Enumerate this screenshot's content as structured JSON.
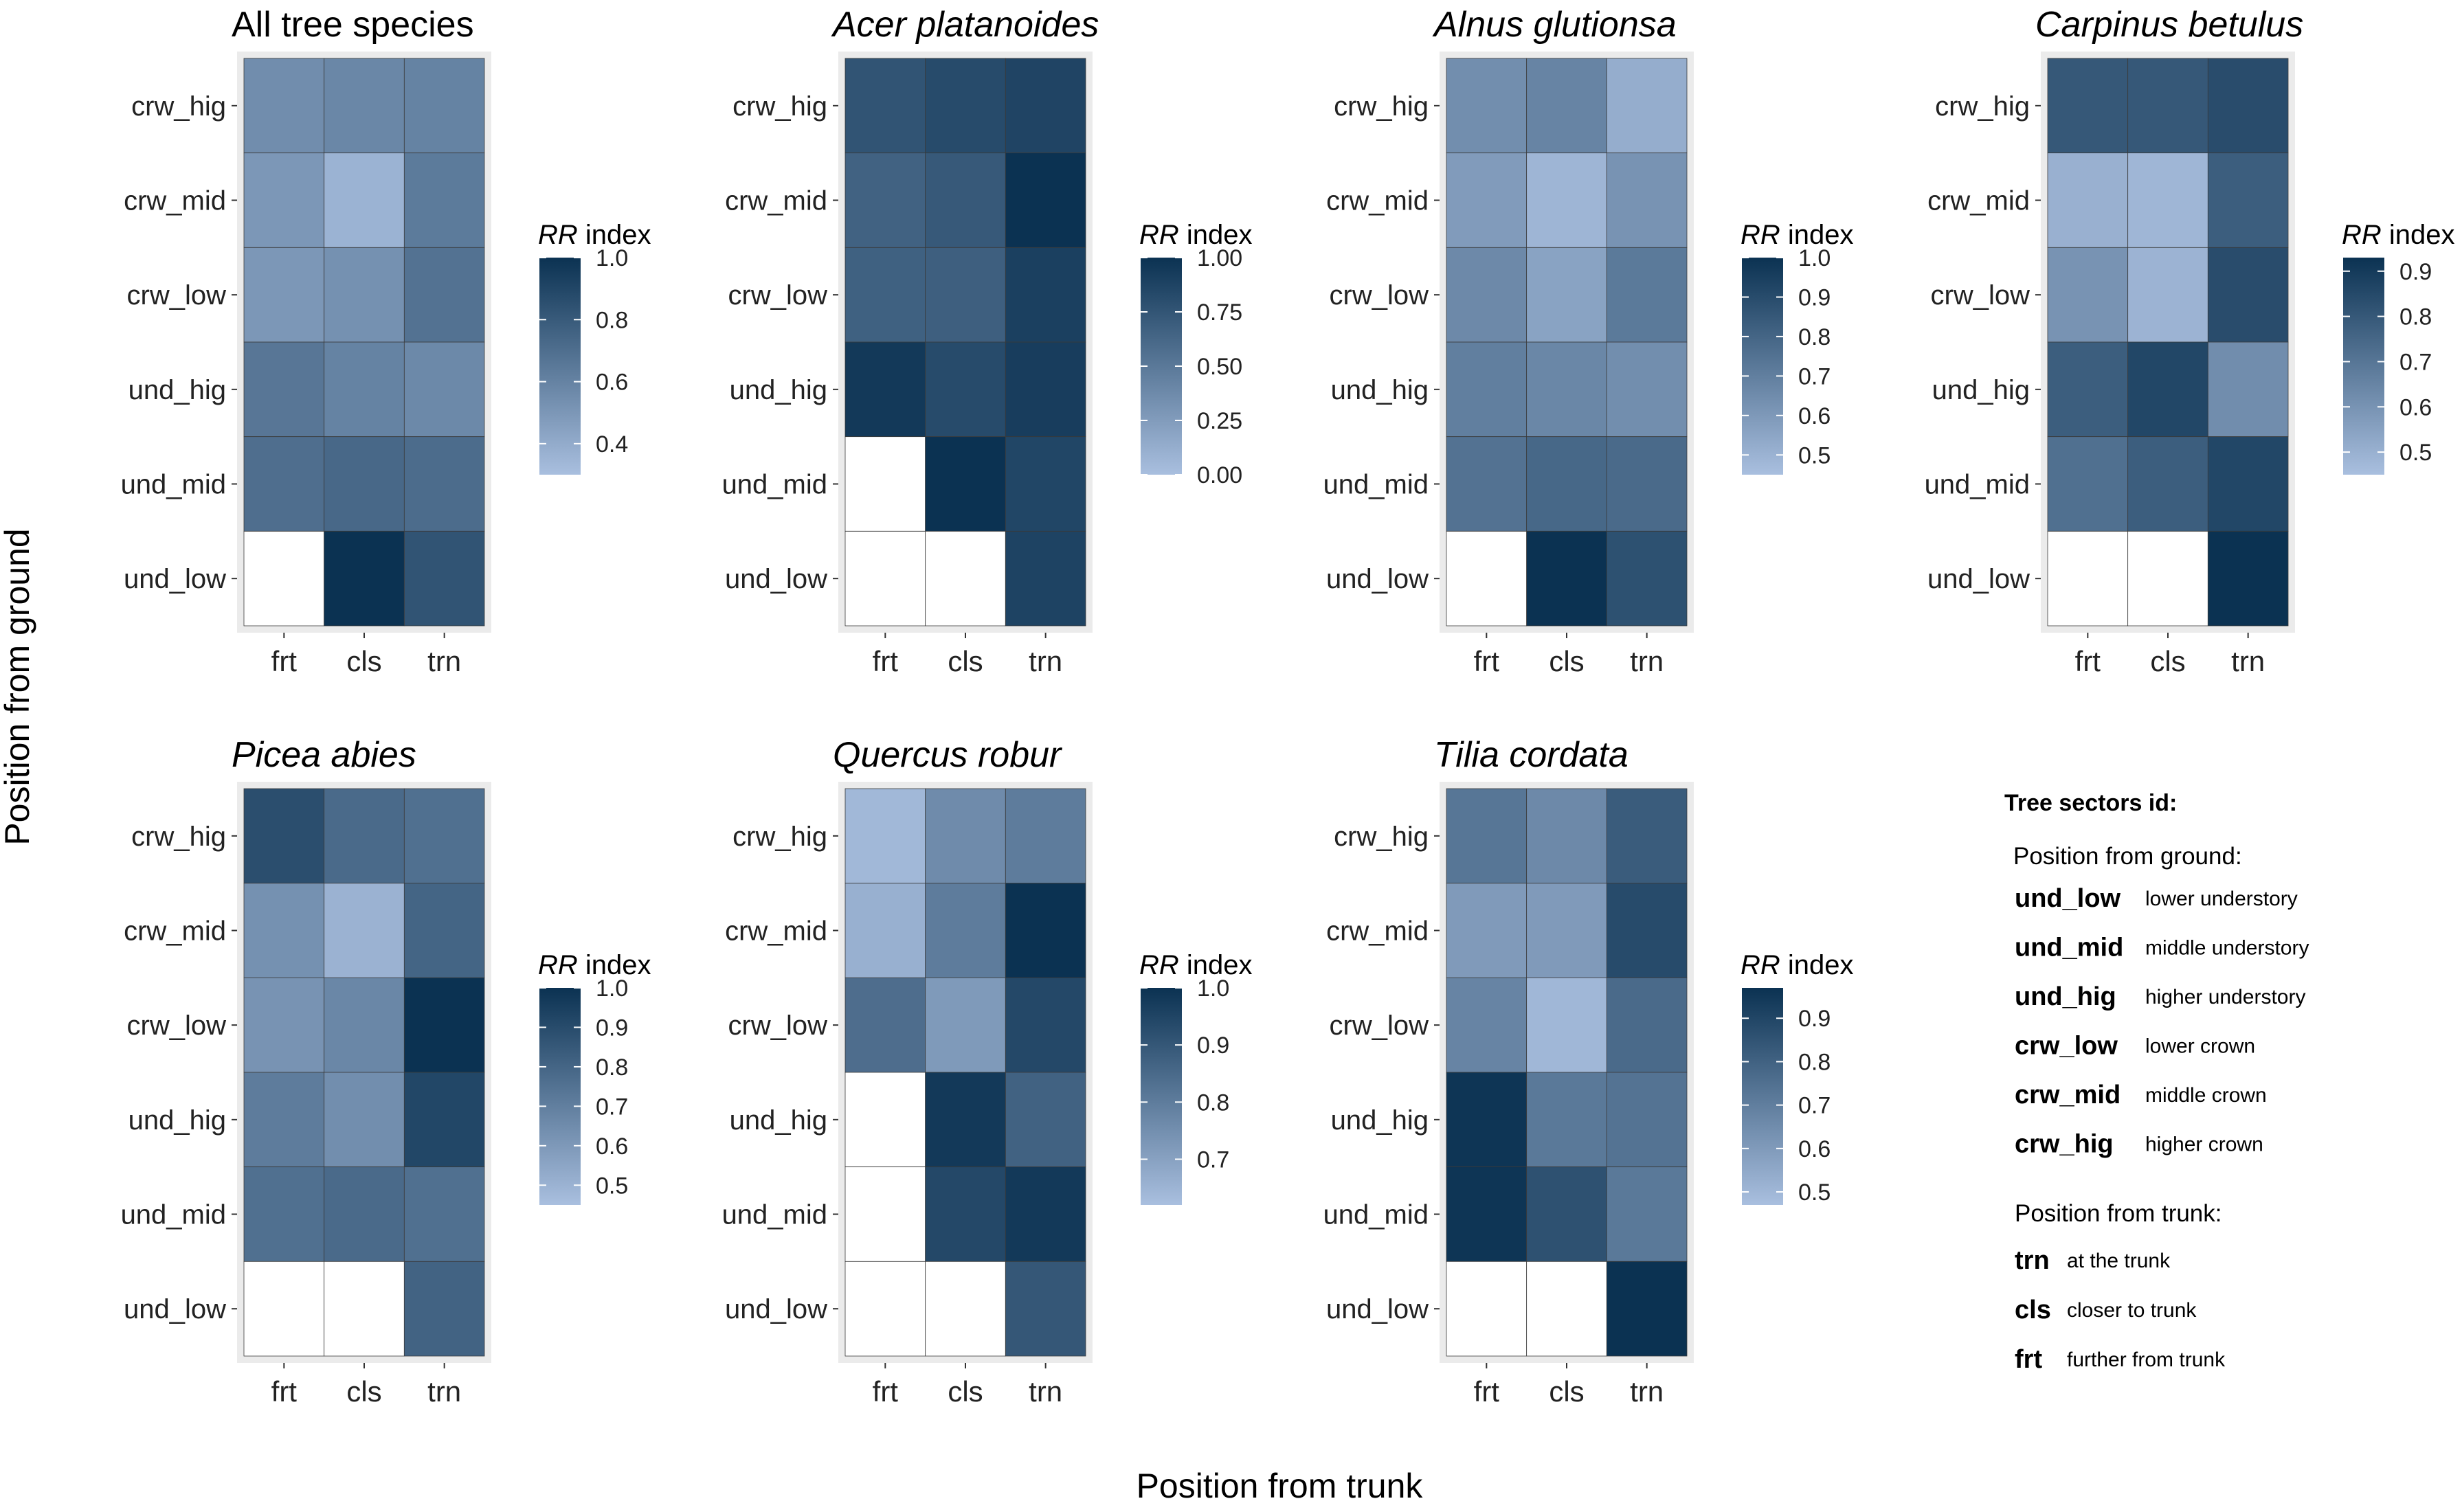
{
  "axes": {
    "ylabel": "Position from ground",
    "xlabel": "Position from trunk"
  },
  "colors": {
    "low": "#a9bfdf",
    "high": "#0b3252",
    "panel_bg": "#ebebeb",
    "missing": "#ffffff"
  },
  "chart_data": [
    {
      "type": "heatmap",
      "title": "All tree species",
      "italic_title": false,
      "x": [
        "frt",
        "cls",
        "trn"
      ],
      "y": [
        "crw_hig",
        "crw_mid",
        "crw_low",
        "und_hig",
        "und_mid",
        "und_low"
      ],
      "legend_title_italic": "RR",
      "legend_title_rest": " index",
      "limits": [
        0.3,
        1.0
      ],
      "breaks": [
        0.4,
        0.6,
        0.8,
        1.0
      ],
      "break_labels": [
        "0.4",
        "0.6",
        "0.8",
        "1.0"
      ],
      "values": [
        [
          0.55,
          0.58,
          0.6
        ],
        [
          0.5,
          0.36,
          0.64
        ],
        [
          0.5,
          0.53,
          0.68
        ],
        [
          0.66,
          0.6,
          0.57
        ],
        [
          0.7,
          0.73,
          0.71
        ],
        [
          null,
          1.0,
          0.83
        ]
      ]
    },
    {
      "type": "heatmap",
      "title": "Acer platanoides",
      "italic_title": true,
      "x": [
        "frt",
        "cls",
        "trn"
      ],
      "y": [
        "crw_hig",
        "crw_mid",
        "crw_low",
        "und_hig",
        "und_mid",
        "und_low"
      ],
      "legend_title_italic": "RR",
      "legend_title_rest": " index",
      "limits": [
        0.0,
        1.0
      ],
      "breaks": [
        0.0,
        0.25,
        0.5,
        0.75,
        1.0
      ],
      "break_labels": [
        "0.00",
        "0.25",
        "0.50",
        "0.75",
        "1.00"
      ],
      "values": [
        [
          0.76,
          0.82,
          0.87
        ],
        [
          0.66,
          0.72,
          1.0
        ],
        [
          0.67,
          0.68,
          0.9
        ],
        [
          0.95,
          0.82,
          0.92
        ],
        [
          null,
          1.0,
          0.86
        ],
        [
          null,
          null,
          0.88
        ]
      ]
    },
    {
      "type": "heatmap",
      "title": "Alnus glutionsa",
      "italic_title": true,
      "x": [
        "frt",
        "cls",
        "trn"
      ],
      "y": [
        "crw_hig",
        "crw_mid",
        "crw_low",
        "und_hig",
        "und_mid",
        "und_low"
      ],
      "legend_title_italic": "RR",
      "legend_title_rest": " index",
      "limits": [
        0.45,
        1.0
      ],
      "breaks": [
        0.5,
        0.6,
        0.7,
        0.8,
        0.9,
        1.0
      ],
      "break_labels": [
        "0.5",
        "0.6",
        "0.7",
        "0.8",
        "0.9",
        "1.0"
      ],
      "values": [
        [
          0.64,
          0.68,
          0.52
        ],
        [
          0.59,
          0.49,
          0.62
        ],
        [
          0.66,
          0.56,
          0.72
        ],
        [
          0.7,
          0.67,
          0.64
        ],
        [
          0.75,
          0.79,
          0.78
        ],
        [
          null,
          1.0,
          0.88
        ]
      ]
    },
    {
      "type": "heatmap",
      "title": "Carpinus betulus",
      "italic_title": true,
      "x": [
        "frt",
        "cls",
        "trn"
      ],
      "y": [
        "crw_hig",
        "crw_mid",
        "crw_low",
        "und_hig",
        "und_mid",
        "und_low"
      ],
      "legend_title_italic": "RR",
      "legend_title_rest": " index",
      "limits": [
        0.45,
        0.93
      ],
      "breaks": [
        0.5,
        0.6,
        0.7,
        0.8,
        0.9
      ],
      "break_labels": [
        "0.5",
        "0.6",
        "0.7",
        "0.8",
        "0.9"
      ],
      "values": [
        [
          0.8,
          0.8,
          0.84
        ],
        [
          0.5,
          0.48,
          0.78
        ],
        [
          0.6,
          0.49,
          0.84
        ],
        [
          0.78,
          0.86,
          0.62
        ],
        [
          0.72,
          0.78,
          0.86
        ],
        [
          null,
          null,
          0.93
        ]
      ]
    },
    {
      "type": "heatmap",
      "title": "Picea abies",
      "italic_title": true,
      "x": [
        "frt",
        "cls",
        "trn"
      ],
      "y": [
        "crw_hig",
        "crw_mid",
        "crw_low",
        "und_hig",
        "und_mid",
        "und_low"
      ],
      "legend_title_italic": "RR",
      "legend_title_rest": " index",
      "limits": [
        0.45,
        1.0
      ],
      "breaks": [
        0.5,
        0.6,
        0.7,
        0.8,
        0.9,
        1.0
      ],
      "break_labels": [
        "0.5",
        "0.6",
        "0.7",
        "0.8",
        "0.9",
        "1.0"
      ],
      "values": [
        [
          0.89,
          0.78,
          0.76
        ],
        [
          0.63,
          0.5,
          0.8
        ],
        [
          0.62,
          0.67,
          1.0
        ],
        [
          0.71,
          0.64,
          0.92
        ],
        [
          0.76,
          0.78,
          0.76
        ],
        [
          null,
          null,
          0.81
        ]
      ]
    },
    {
      "type": "heatmap",
      "title": "Quercus robur",
      "italic_title": true,
      "x": [
        "frt",
        "cls",
        "trn"
      ],
      "y": [
        "crw_hig",
        "crw_mid",
        "crw_low",
        "und_hig",
        "und_mid",
        "und_low"
      ],
      "legend_title_italic": "RR",
      "legend_title_rest": " index",
      "limits": [
        0.62,
        1.0
      ],
      "breaks": [
        0.7,
        0.8,
        0.9,
        1.0
      ],
      "break_labels": [
        "0.7",
        "0.8",
        "0.9",
        "1.0"
      ],
      "values": [
        [
          0.64,
          0.76,
          0.8
        ],
        [
          0.66,
          0.8,
          1.0
        ],
        [
          0.84,
          0.72,
          0.94
        ],
        [
          null,
          0.98,
          0.87
        ],
        [
          null,
          0.94,
          0.98
        ],
        [
          null,
          null,
          0.9
        ]
      ]
    },
    {
      "type": "heatmap",
      "title": "Tilia cordata",
      "italic_title": true,
      "x": [
        "frt",
        "cls",
        "trn"
      ],
      "y": [
        "crw_hig",
        "crw_mid",
        "crw_low",
        "und_hig",
        "und_mid",
        "und_low"
      ],
      "legend_title_italic": "RR",
      "legend_title_rest": " index",
      "limits": [
        0.47,
        0.97
      ],
      "breaks": [
        0.5,
        0.6,
        0.7,
        0.8,
        0.9
      ],
      "break_labels": [
        "0.5",
        "0.6",
        "0.7",
        "0.8",
        "0.9"
      ],
      "values": [
        [
          0.73,
          0.66,
          0.82
        ],
        [
          0.6,
          0.6,
          0.88
        ],
        [
          0.68,
          0.5,
          0.77
        ],
        [
          0.96,
          0.72,
          0.74
        ],
        [
          0.96,
          0.86,
          0.72
        ],
        [
          null,
          null,
          0.97
        ]
      ]
    }
  ],
  "key": {
    "title": "Tree sectors id:",
    "ground_heading": "Position from ground:",
    "ground_items": [
      {
        "code": "und_low",
        "desc": "lower understory"
      },
      {
        "code": "und_mid",
        "desc": "middle understory"
      },
      {
        "code": "und_hig",
        "desc": "higher understory"
      },
      {
        "code": "crw_low",
        "desc": "lower crown"
      },
      {
        "code": "crw_mid",
        "desc": "middle crown"
      },
      {
        "code": "crw_hig",
        "desc": "higher crown"
      }
    ],
    "trunk_heading": "Position from trunk:",
    "trunk_items": [
      {
        "code": "trn",
        "desc": "at the trunk"
      },
      {
        "code": "cls",
        "desc": "closer to trunk"
      },
      {
        "code": "frt",
        "desc": "further from trunk"
      }
    ]
  }
}
